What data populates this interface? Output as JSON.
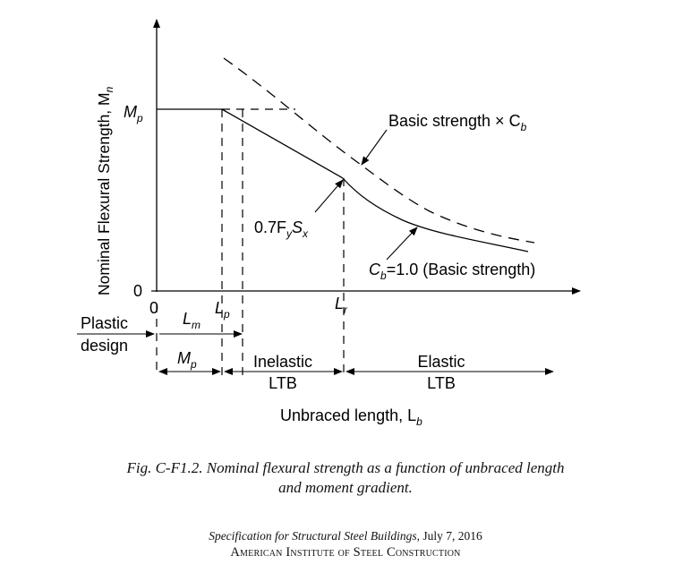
{
  "figure": {
    "y_axis_label": "Nominal Flexural Strength, M",
    "y_axis_label_sub": "n",
    "y_tick_top": "M",
    "y_tick_top_sub": "p",
    "y_tick_zero": "0",
    "x_tick_zero": "0",
    "x_tick_lp": "L",
    "x_tick_lp_sub": "p",
    "x_tick_lr": "L",
    "x_tick_lr_sub": "r",
    "label_basic_cb": "Basic strength × C",
    "label_basic_cb_sub": "b",
    "label_fysx_pre": "0.7F",
    "label_fysx_sub1": "y",
    "label_fysx_mid": "S",
    "label_fysx_sub2": "x",
    "label_cb1_pre": "C",
    "label_cb1_sub": "b",
    "label_cb1_post": "=1.0 (Basic strength)",
    "plastic_line1": "Plastic",
    "plastic_line2": "design",
    "lm_label": "L",
    "lm_label_sub": "m",
    "mp_label": "M",
    "mp_label_sub": "p",
    "inelastic_line1": "Inelastic",
    "inelastic_line2": "LTB",
    "elastic_line1": "Elastic",
    "elastic_line2": "LTB",
    "x_axis_label": "Unbraced length, L",
    "x_axis_label_sub": "b"
  },
  "caption": {
    "line1": "Fig. C-F1.2.  Nominal flexural strength as a function of unbraced length",
    "line2": "and moment gradient."
  },
  "footer": {
    "line1_title": "Specification for Structural Steel Buildings",
    "line1_date": ", July 7, 2016",
    "line2": "American Institute of Steel Construction"
  }
}
